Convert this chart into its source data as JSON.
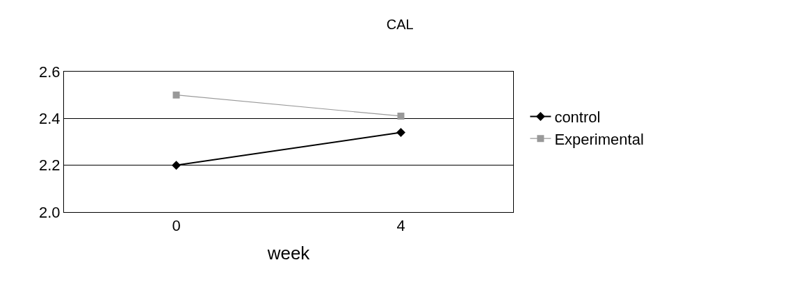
{
  "chart_data": {
    "type": "line",
    "title": "CAL",
    "xlabel": "week",
    "categories": [
      "0",
      "4"
    ],
    "series": [
      {
        "name": "control",
        "color": "#000000",
        "values": [
          2.2,
          2.34
        ],
        "marker": "diamond"
      },
      {
        "name": "Experimental",
        "color": "#999999",
        "values": [
          2.5,
          2.41
        ],
        "marker": "square"
      }
    ],
    "ylim": [
      2.0,
      2.6
    ],
    "yticks": [
      {
        "value": 2.0,
        "label": "2.0"
      },
      {
        "value": 2.2,
        "label": "2.2"
      },
      {
        "value": 2.4,
        "label": "2.4"
      },
      {
        "value": 2.6,
        "label": "2.6"
      }
    ],
    "grid": "y",
    "legend": "right",
    "line_style": "solid"
  }
}
